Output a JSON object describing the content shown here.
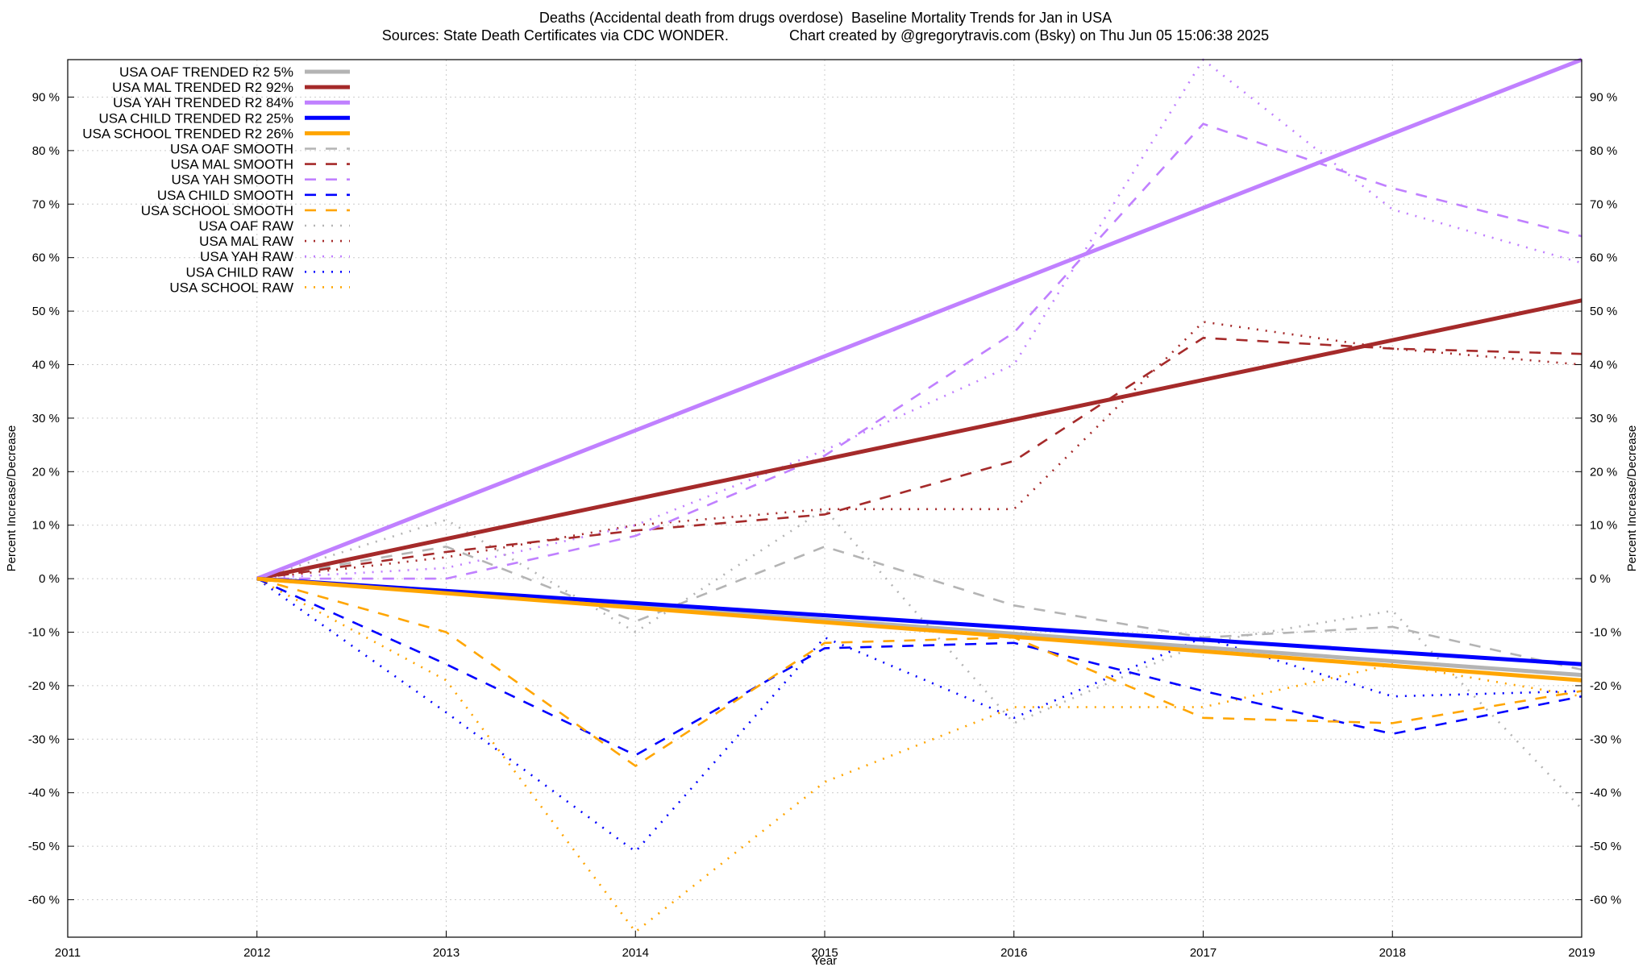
{
  "chart_data": {
    "type": "line",
    "title": "Deaths (Accidental death from drugs overdose)  Baseline Mortality Trends for Jan in USA",
    "subtitle": "Sources: State Death Certificates via CDC WONDER.               Chart created by @gregorytravis.com (Bsky) on Thu Jun 05 15:06:38 2025",
    "xlabel": "Year",
    "ylabel": "Percent Increase/Decrease",
    "y2label": "Percent Increase/Decrease",
    "xlim": [
      2011,
      2019
    ],
    "ylim": [
      -67,
      97
    ],
    "x_ticks": [
      2011,
      2012,
      2013,
      2014,
      2015,
      2016,
      2017,
      2018,
      2019
    ],
    "y_ticks": [
      -60,
      -50,
      -40,
      -30,
      -20,
      -10,
      0,
      10,
      20,
      30,
      40,
      50,
      60,
      70,
      80,
      90
    ],
    "y_tick_suffix": " %",
    "grid": true,
    "legend_position": "top-left",
    "series": [
      {
        "name": "USA OAF TRENDED R2   5%",
        "style": "solid",
        "color": "#b4b4b4",
        "x": [
          2012,
          2019
        ],
        "y": [
          0,
          -18
        ]
      },
      {
        "name": "USA MAL TRENDED R2  92%",
        "style": "solid",
        "color": "#a52a2a",
        "x": [
          2012,
          2019
        ],
        "y": [
          0,
          52
        ]
      },
      {
        "name": "USA YAH TRENDED R2  84%",
        "style": "solid",
        "color": "#c080ff",
        "x": [
          2012,
          2019
        ],
        "y": [
          0,
          97
        ]
      },
      {
        "name": "USA CHILD TRENDED R2  25%",
        "style": "solid",
        "color": "#0000ff",
        "x": [
          2012,
          2019
        ],
        "y": [
          0,
          -16
        ]
      },
      {
        "name": "USA SCHOOL TRENDED R2  26%",
        "style": "solid",
        "color": "#ffa500",
        "x": [
          2012,
          2019
        ],
        "y": [
          0,
          -19
        ]
      },
      {
        "name": "USA OAF SMOOTH",
        "style": "dashed",
        "color": "#b4b4b4",
        "x": [
          2012,
          2013,
          2014,
          2015,
          2016,
          2017,
          2018,
          2019
        ],
        "y": [
          0,
          6,
          -8,
          6,
          -5,
          -11,
          -9,
          -17
        ]
      },
      {
        "name": "USA MAL SMOOTH",
        "style": "dashed",
        "color": "#a52a2a",
        "x": [
          2012,
          2013,
          2014,
          2015,
          2016,
          2017,
          2018,
          2019
        ],
        "y": [
          0,
          5,
          9,
          12,
          22,
          45,
          43,
          42
        ]
      },
      {
        "name": "USA YAH SMOOTH",
        "style": "dashed",
        "color": "#c080ff",
        "x": [
          2012,
          2013,
          2014,
          2015,
          2016,
          2017,
          2018,
          2019
        ],
        "y": [
          0,
          0,
          8,
          23,
          46,
          85,
          73,
          64
        ]
      },
      {
        "name": "USA CHILD SMOOTH",
        "style": "dashed",
        "color": "#0000ff",
        "x": [
          2012,
          2013,
          2014,
          2015,
          2016,
          2017,
          2018,
          2019
        ],
        "y": [
          0,
          -16,
          -33,
          -13,
          -12,
          -21,
          -29,
          -22
        ]
      },
      {
        "name": "USA SCHOOL SMOOTH",
        "style": "dashed",
        "color": "#ffa500",
        "x": [
          2012,
          2013,
          2014,
          2015,
          2016,
          2017,
          2018,
          2019
        ],
        "y": [
          0,
          -10,
          -35,
          -12,
          -11,
          -26,
          -27,
          -21
        ]
      },
      {
        "name": "USA OAF RAW",
        "style": "dotted",
        "color": "#b4b4b4",
        "x": [
          2012,
          2013,
          2014,
          2015,
          2016,
          2017,
          2018,
          2019
        ],
        "y": [
          0,
          11,
          -10,
          13,
          -27,
          -12,
          -6,
          -43
        ]
      },
      {
        "name": "USA MAL RAW",
        "style": "dotted",
        "color": "#a52a2a",
        "x": [
          2012,
          2013,
          2014,
          2015,
          2016,
          2017,
          2018,
          2019
        ],
        "y": [
          0,
          4,
          10,
          13,
          13,
          48,
          43,
          40
        ]
      },
      {
        "name": "USA YAH RAW",
        "style": "dotted",
        "color": "#c080ff",
        "x": [
          2012,
          2013,
          2014,
          2015,
          2016,
          2017,
          2018,
          2019
        ],
        "y": [
          0,
          2,
          10,
          24,
          40,
          97,
          69,
          59
        ]
      },
      {
        "name": "USA CHILD RAW",
        "style": "dotted",
        "color": "#0000ff",
        "x": [
          2012,
          2013,
          2014,
          2015,
          2016,
          2017,
          2018,
          2019
        ],
        "y": [
          0,
          -25,
          -51,
          -11,
          -26,
          -11,
          -22,
          -21
        ]
      },
      {
        "name": "USA SCHOOL RAW",
        "style": "dotted",
        "color": "#ffa500",
        "x": [
          2012,
          2013,
          2014,
          2015,
          2016,
          2017,
          2018,
          2019
        ],
        "y": [
          0,
          -19,
          -66,
          -38,
          -24,
          -24,
          -16,
          -22
        ]
      }
    ]
  }
}
